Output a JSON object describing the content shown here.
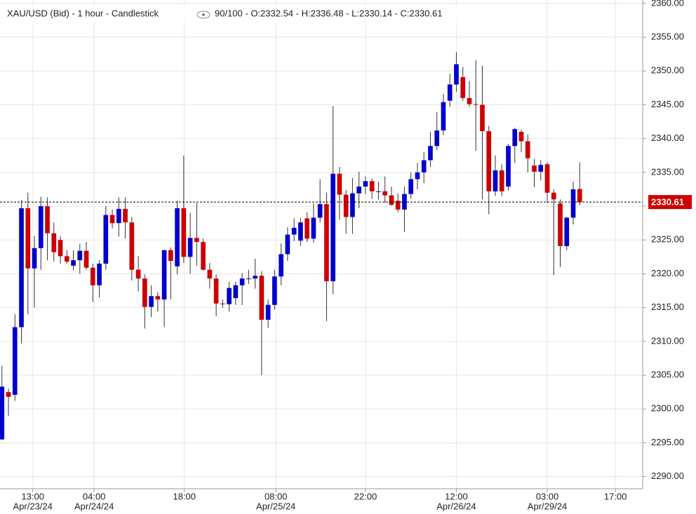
{
  "chart_data": {
    "type": "candlestick",
    "title": "XAU/USD (Bid) - 1 hour - Candlestick",
    "legend_text": "90/100 - O:2332.54 - H:2336.48 - L:2330.14 - C:2330.61",
    "up_color": "#0000cc",
    "down_color": "#cc0000",
    "ylim": [
      2288.2,
      2360.5
    ],
    "yticks": [
      {
        "value": 2290,
        "label": "2290.00"
      },
      {
        "value": 2295,
        "label": "2295.00"
      },
      {
        "value": 2300,
        "label": "2300.00"
      },
      {
        "value": 2305,
        "label": "2305.00"
      },
      {
        "value": 2310,
        "label": "2310.00"
      },
      {
        "value": 2315,
        "label": "2315.00"
      },
      {
        "value": 2320,
        "label": "2320.00"
      },
      {
        "value": 2325,
        "label": "2325.00"
      },
      {
        "value": 2330,
        "label": "2330.00"
      },
      {
        "value": 2335,
        "label": "2335.00"
      },
      {
        "value": 2340,
        "label": "2340.00"
      },
      {
        "value": 2345,
        "label": "2345.00"
      },
      {
        "value": 2350,
        "label": "2350.00"
      },
      {
        "value": 2355,
        "label": "2355.00"
      },
      {
        "value": 2360,
        "label": "2360.00"
      }
    ],
    "xlim": [
      -0.3,
      98.7
    ],
    "xticks": [
      {
        "value": 4.75,
        "label": "13:00"
      },
      {
        "value": 14.2,
        "label": "04:00"
      },
      {
        "value": 28.1,
        "label": "18:00"
      },
      {
        "value": 42.2,
        "label": "08:00"
      },
      {
        "value": 56,
        "label": "22:00"
      },
      {
        "value": 70,
        "label": "12:00"
      },
      {
        "value": 84,
        "label": "03:00"
      },
      {
        "value": 94.5,
        "label": "17:00"
      }
    ],
    "xtick_dates": [
      {
        "value": 4.75,
        "label": "Apr/23/24"
      },
      {
        "value": 14.2,
        "label": "Apr/24/24"
      },
      {
        "value": 42.2,
        "label": "Apr/25/24"
      },
      {
        "value": 70,
        "label": "Apr/26/24"
      },
      {
        "value": 84,
        "label": "Apr/29/24"
      }
    ],
    "last_price": {
      "value": 2330.61,
      "label": "2330.61"
    },
    "grid": true,
    "open": [
      2295.5,
      2302.5,
      2302.1,
      2312.1,
      2329.7,
      2320.8,
      2323.8,
      2330.0,
      2326.0,
      2325.0,
      2322.6,
      2321.2,
      2322.0,
      2323.4,
      2320.9,
      2318.3,
      2321.5,
      2328.7,
      2327.5,
      2329.6,
      2327.6,
      2320.6,
      2319.3,
      2315.1,
      2316.7,
      2316.2,
      2323.5,
      2321.1,
      2329.7,
      2322.5,
      2325.3,
      2324.7,
      2320.6,
      2319.3,
      2315.6,
      2315.5,
      2316.4,
      2318.3,
      2319.3,
      2319.3,
      2319.7,
      2313.2,
      2315.4,
      2319.6,
      2322.9,
      2325.8,
      2324.9,
      2328.2,
      2325.2,
      2328.3,
      2330.3,
      2318.9,
      2334.8,
      2331.7,
      2328.4,
      2331.9,
      2332.9,
      2333.7,
      2332.2,
      2332.2,
      2331.6,
      2330.8,
      2329.5,
      2331.8,
      2334.0,
      2335.0,
      2336.8,
      2338.9,
      2341.2,
      2345.6,
      2348.0,
      2349.1,
      2346.0,
      2345.1,
      2345.0,
      2341.1,
      2332.2,
      2335.3,
      2332.9,
      2338.9,
      2341.0,
      2339.6,
      2336.0,
      2335.1,
      2336.2,
      2332.0,
      2330.4,
      2324.1,
      2328.3,
      2332.54
    ],
    "high": [
      2306.4,
      2303.0,
      2314.0,
      2330.9,
      2332.0,
      2325.6,
      2331.4,
      2331.3,
      2327.6,
      2325.6,
      2323.5,
      2323.5,
      2324.4,
      2324.7,
      2321.5,
      2322.0,
      2330.0,
      2329.5,
      2331.3,
      2331.3,
      2328.4,
      2322.6,
      2319.9,
      2318.3,
      2317.3,
      2323.5,
      2323.9,
      2330.8,
      2337.5,
      2329.0,
      2330.5,
      2325.2,
      2321.6,
      2319.9,
      2316.2,
      2318.8,
      2318.8,
      2320.1,
      2320.6,
      2322.2,
      2320.4,
      2316.2,
      2320.6,
      2324.5,
      2326.9,
      2328.2,
      2328.3,
      2329.1,
      2330.4,
      2334.0,
      2332.0,
      2344.8,
      2335.8,
      2332.4,
      2334.2,
      2335.1,
      2334.4,
      2334.1,
      2333.6,
      2334.4,
      2332.9,
      2331.9,
      2332.9,
      2335.0,
      2336.4,
      2338.0,
      2341.0,
      2343.9,
      2346.6,
      2349.6,
      2352.8,
      2350.6,
      2348.5,
      2351.6,
      2350.8,
      2341.9,
      2337.5,
      2336.2,
      2339.2,
      2341.6,
      2341.3,
      2340.6,
      2337.0,
      2336.8,
      2336.5,
      2332.5,
      2331.0,
      2328.4,
      2333.6,
      2336.48
    ],
    "low": [
      2295.4,
      2299.0,
      2301.2,
      2309.7,
      2314.0,
      2315.0,
      2320.6,
      2322.0,
      2321.8,
      2321.5,
      2321.5,
      2320.5,
      2320.0,
      2320.6,
      2315.8,
      2316.5,
      2320.6,
      2326.7,
      2325.5,
      2325.2,
      2319.0,
      2317.4,
      2311.9,
      2313.6,
      2314.4,
      2312.1,
      2316.2,
      2319.9,
      2321.6,
      2320.0,
      2321.2,
      2320.5,
      2317.8,
      2313.7,
      2315.0,
      2314.4,
      2315.4,
      2315.4,
      2318.5,
      2317.8,
      2305.0,
      2312.0,
      2314.7,
      2318.3,
      2321.9,
      2324.8,
      2324.1,
      2324.7,
      2324.6,
      2327.6,
      2313.0,
      2317.0,
      2328.0,
      2325.9,
      2325.9,
      2329.7,
      2331.8,
      2331.1,
      2331.0,
      2330.5,
      2330.1,
      2329.1,
      2326.2,
      2331.1,
      2332.5,
      2333.4,
      2335.8,
      2338.3,
      2340.5,
      2344.7,
      2346.9,
      2345.6,
      2344.7,
      2338.2,
      2331.0,
      2328.8,
      2331.5,
      2331.5,
      2332.3,
      2336.4,
      2338.0,
      2335.0,
      2332.8,
      2333.8,
      2330.5,
      2319.8,
      2321.0,
      2323.5,
      2327.3,
      2330.14
    ],
    "close": [
      2303.3,
      2301.8,
      2312.1,
      2329.7,
      2320.8,
      2323.8,
      2330.0,
      2326.0,
      2323.2,
      2322.6,
      2321.8,
      2322.0,
      2323.4,
      2320.9,
      2318.3,
      2321.5,
      2328.7,
      2327.5,
      2329.6,
      2327.6,
      2320.6,
      2319.3,
      2315.1,
      2316.7,
      2316.2,
      2323.5,
      2321.9,
      2329.7,
      2322.5,
      2325.3,
      2324.7,
      2320.6,
      2319.3,
      2315.6,
      2315.5,
      2317.9,
      2318.3,
      2319.3,
      2319.3,
      2319.7,
      2313.2,
      2315.4,
      2319.6,
      2322.9,
      2325.8,
      2326.8,
      2327.6,
      2325.2,
      2328.3,
      2330.3,
      2318.9,
      2334.8,
      2331.7,
      2328.4,
      2331.9,
      2332.9,
      2333.7,
      2332.2,
      2332.2,
      2331.6,
      2330.2,
      2329.5,
      2331.8,
      2334.0,
      2335.0,
      2336.8,
      2338.9,
      2341.2,
      2345.4,
      2348.0,
      2351.0,
      2346.0,
      2345.1,
      2345.0,
      2341.1,
      2332.2,
      2335.3,
      2332.2,
      2338.9,
      2341.4,
      2339.6,
      2337.1,
      2335.1,
      2336.1,
      2332.0,
      2331.0,
      2324.1,
      2328.3,
      2332.5,
      2330.61
    ]
  }
}
